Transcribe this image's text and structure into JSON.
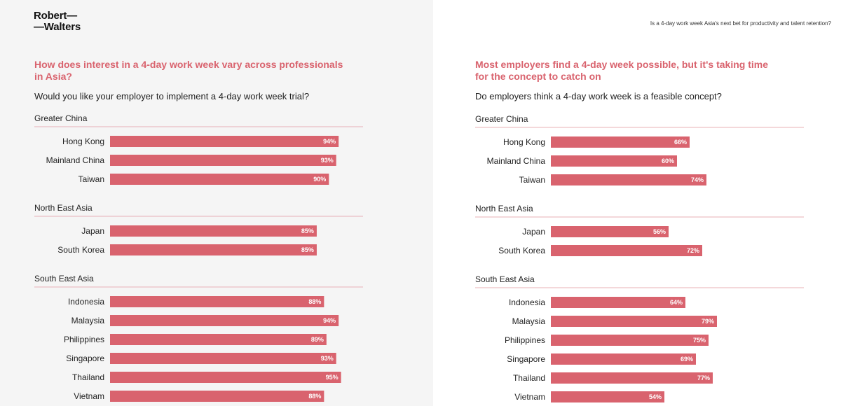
{
  "logo": {
    "line1": "Robert—",
    "line2": "—Walters"
  },
  "header_title": "Is a 4-day work week Asia's next bet for productivity and talent retention?",
  "colors": {
    "bar": "#d9636e",
    "heading": "#d9636e",
    "divider": "#e8b0b6",
    "left_bg": "#f5f5f5"
  },
  "chart_data": [
    {
      "type": "bar",
      "title": "How does interest in a 4-day work week vary across professionals in Asia?",
      "subtitle": "Would you like your employer to implement a 4-day work week trial?",
      "unit": "%",
      "groups": [
        {
          "name": "Greater China",
          "items": [
            {
              "label": "Hong Kong",
              "value": 94,
              "value_label": "94%"
            },
            {
              "label": "Mainland China",
              "value": 93,
              "value_label": "93%"
            },
            {
              "label": "Taiwan",
              "value": 90,
              "value_label": "90%"
            }
          ]
        },
        {
          "name": "North East Asia",
          "items": [
            {
              "label": "Japan",
              "value": 85,
              "value_label": "85%"
            },
            {
              "label": "South Korea",
              "value": 85,
              "value_label": "85%"
            }
          ]
        },
        {
          "name": "South East Asia",
          "items": [
            {
              "label": "Indonesia",
              "value": 88,
              "value_label": "88%"
            },
            {
              "label": "Malaysia",
              "value": 94,
              "value_label": "94%"
            },
            {
              "label": "Philippines",
              "value": 89,
              "value_label": "89%"
            },
            {
              "label": "Singapore",
              "value": 93,
              "value_label": "93%"
            },
            {
              "label": "Thailand",
              "value": 95,
              "value_label": "95%"
            },
            {
              "label": "Vietnam",
              "value": 88,
              "value_label": "88%"
            }
          ]
        }
      ]
    },
    {
      "type": "bar",
      "title": "Most employers find a 4-day week possible, but it's taking time for the concept to catch on",
      "subtitle": "Do employers think a 4-day work week is a feasible concept?",
      "unit": "%",
      "groups": [
        {
          "name": "Greater China",
          "items": [
            {
              "label": "Hong Kong",
              "value": 66,
              "value_label": "66%"
            },
            {
              "label": "Mainland China",
              "value": 60,
              "value_label": "60%"
            },
            {
              "label": "Taiwan",
              "value": 74,
              "value_label": "74%"
            }
          ]
        },
        {
          "name": "North East Asia",
          "items": [
            {
              "label": "Japan",
              "value": 56,
              "value_label": "56%"
            },
            {
              "label": "South Korea",
              "value": 72,
              "value_label": "72%"
            }
          ]
        },
        {
          "name": "South East Asia",
          "items": [
            {
              "label": "Indonesia",
              "value": 64,
              "value_label": "64%"
            },
            {
              "label": "Malaysia",
              "value": 79,
              "value_label": "79%"
            },
            {
              "label": "Philippines",
              "value": 75,
              "value_label": "75%"
            },
            {
              "label": "Singapore",
              "value": 69,
              "value_label": "69%"
            },
            {
              "label": "Thailand",
              "value": 77,
              "value_label": "77%"
            },
            {
              "label": "Vietnam",
              "value": 54,
              "value_label": "54%"
            }
          ]
        }
      ]
    }
  ]
}
